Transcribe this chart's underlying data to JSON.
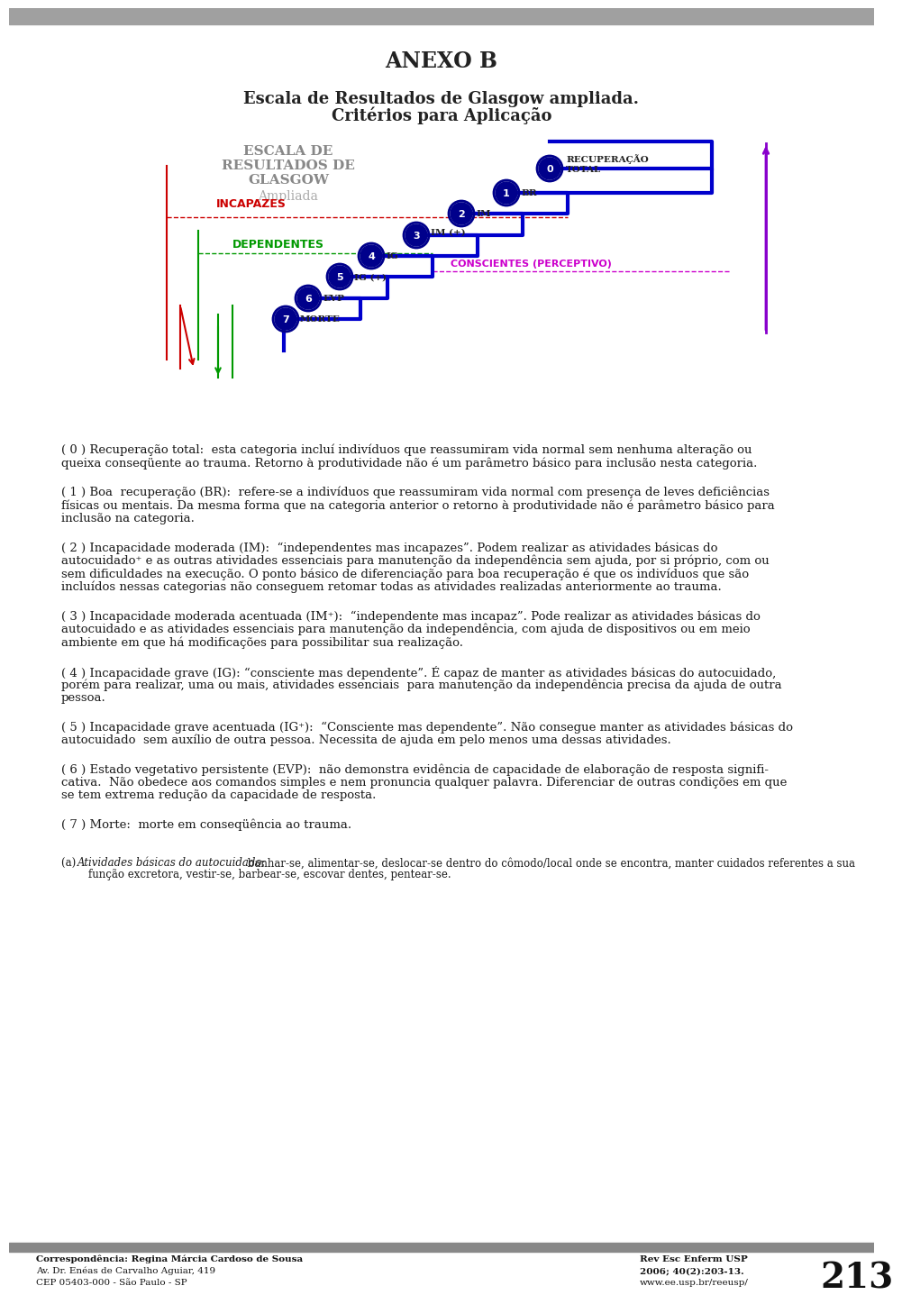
{
  "page_title": "ANEXO B",
  "subtitle1": "Escala de Resultados de Glasgow ampliada.",
  "subtitle2": "Critérios para Aplicação",
  "diagram_title1": "ESCALA DE",
  "diagram_title2": "RESULTADOS DE",
  "diagram_title3": "GLASGOW",
  "diagram_title4": "Ampliada",
  "bg_color": "#f0f0f0",
  "page_bg": "#ffffff",
  "header_bar_color": "#b0b0b0",
  "labels": [
    "RECUPERAÇÃO\nTOTAL",
    "BR",
    "IM",
    "IM (+)",
    "IG",
    "IG (+)",
    "EVP",
    "MORTE"
  ],
  "numbers": [
    "0",
    "1",
    "2",
    "3",
    "4",
    "5",
    "6",
    "7"
  ],
  "incapazes_label": "INCAPAZES",
  "dependentes_label": "DEPENDENTES",
  "conscientes_label": "CONSCIENTES (PERCEPTIVO)",
  "text_blocks": [
    {
      "label": "( 0 ) Recuperação total:",
      "text": " esta categoria incluí indivíduos que reassumiram vida normal sem nenhuma alteração ou queixa conseqüente ao trauma. Retorno à produtividade não é um parâmetro básico para inclusão nesta categoria."
    },
    {
      "label": "( 1 ) Boa  recuperação (BR):",
      "text": "  refere-se a indivíduos que reassumiram vida normal com presença de leves deficiências físicas ou mentais. Da mesma forma que na categoria anterior o retorno à produtividade não é parâmetro básico para inclusão na categoria."
    },
    {
      "label": "( 2 ) Incapacidade moderada (IM):",
      "text": "  “independentes mas incapazes”. Podem realizar as atividades básicas do autocuidado⁺ e as outras atividades essenciais para manutenção da independência sem ajuda, por si próprio, com ou sem dificuldades na execução. O ponto básico de diferenciação para boa recuperação é que os indivíduos que são incluídos nessas categorias não conseguem retomar todas as atividades realizadas anteriormente ao trauma."
    },
    {
      "label": "( 3 ) Incapacidade moderada acentuada (IM⁺):",
      "text": "  “independente mas incapaz”. Pode realizar as atividades básicas do autocuidado e as atividades essenciais para manutenção da independência, com ajuda de dispositivos ou em meio ambiente em que há modificações para possibilitar sua realização."
    },
    {
      "label": "( 4 ) Incapacidade grave (IG):",
      "text": " “consciente mas dependente”. É capaz de manter as atividades básicas do autocuidado, porém para realizar, uma ou mais, atividades essenciais  para manutenção da independência precisa da ajuda de outra pessoa."
    },
    {
      "label": "( 5 ) Incapacidade grave acentuada (IG⁺):",
      "text": "  “Consciente mas dependente”. Não consegue manter as atividades básicas do autocuidado  sem auxílio de outra pessoa. Necessita de ajuda em pelo menos uma dessas atividades."
    },
    {
      "label": "( 6 ) Estado vegetativo persistente (EVP):",
      "text": "  não demonstra evidência de capacidade de elaboração de resposta signifi-cativa.  Não obedece aos comandos simples e nem pronuncia qualquer palavra. Diferenciar de outras condições em que se tem extrema redução da capacidade de resposta."
    },
    {
      "label": "( 7 ) Morte:",
      "text": "  morte em conseqüência ao trauma."
    }
  ],
  "footnote_label": "(a) ",
  "footnote_italic": "Atividades básicas do autocuidado:",
  "footnote_text": " banhar-se, alimentar-se, deslocar-se dentro do cômodo/local onde se encontra, manter cuidados referentes a sua função excretora, vestir-se, barbear-se, escovar dentes, pentear-se.",
  "footer_left1": "Correspondência: Regina Márcia Cardoso de Sousa",
  "footer_left2": "Av. Dr. Enéas de Carvalho Aguiar, 419",
  "footer_left3": "CEP 05403-000 - São Paulo - SP",
  "footer_right1": "Rev Esc Enferm USP",
  "footer_right2": "2006; 40(2):203-13.",
  "footer_right3": "www.ee.usp.br/reeusp/",
  "footer_page": "213"
}
